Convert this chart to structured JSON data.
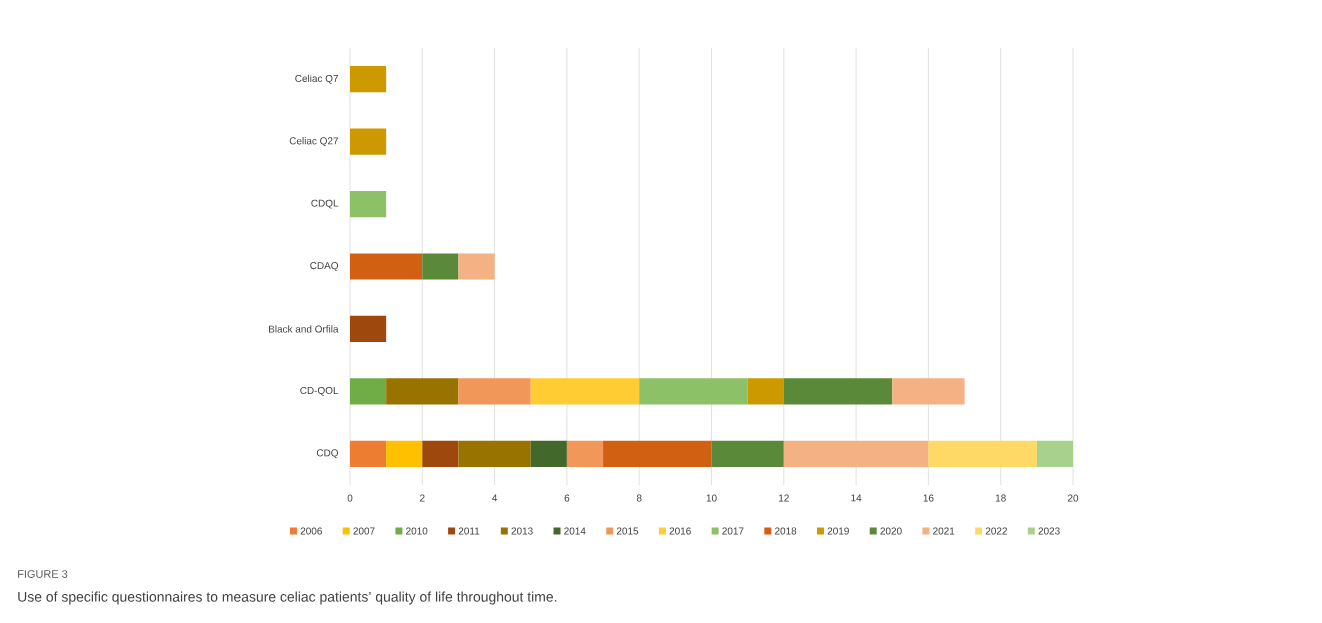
{
  "chart_data": {
    "type": "bar",
    "orientation": "horizontal",
    "stacked": true,
    "categories": [
      "Celiac Q7",
      "Celiac Q27",
      "CDQL",
      "CDAQ",
      "Black and Orfila",
      "CD-QOL",
      "CDQ"
    ],
    "series": [
      {
        "name": "2006",
        "color": "#ed7d31",
        "values": [
          null,
          null,
          null,
          null,
          null,
          null,
          1
        ]
      },
      {
        "name": "2007",
        "color": "#ffc000",
        "values": [
          null,
          null,
          null,
          null,
          null,
          null,
          1
        ]
      },
      {
        "name": "2010",
        "color": "#70ad47",
        "values": [
          null,
          null,
          null,
          null,
          null,
          1,
          null
        ]
      },
      {
        "name": "2011",
        "color": "#9e480e",
        "values": [
          null,
          null,
          null,
          null,
          1,
          null,
          1
        ]
      },
      {
        "name": "2013",
        "color": "#997300",
        "values": [
          null,
          null,
          null,
          null,
          null,
          2,
          2
        ]
      },
      {
        "name": "2014",
        "color": "#43682b",
        "values": [
          null,
          null,
          null,
          null,
          null,
          null,
          1
        ]
      },
      {
        "name": "2015",
        "color": "#f1975a",
        "values": [
          null,
          null,
          null,
          null,
          null,
          2,
          1
        ]
      },
      {
        "name": "2016",
        "color": "#ffcd33",
        "values": [
          null,
          null,
          null,
          null,
          null,
          3,
          null
        ]
      },
      {
        "name": "2017",
        "color": "#8cc168",
        "values": [
          null,
          null,
          1,
          null,
          null,
          3,
          null
        ]
      },
      {
        "name": "2018",
        "color": "#d26012",
        "values": [
          null,
          null,
          null,
          2,
          null,
          null,
          3
        ]
      },
      {
        "name": "2019",
        "color": "#cc9a00",
        "values": [
          1,
          1,
          null,
          null,
          null,
          1,
          null
        ]
      },
      {
        "name": "2020",
        "color": "#5a8a39",
        "values": [
          null,
          null,
          null,
          1,
          null,
          3,
          2
        ]
      },
      {
        "name": "2021",
        "color": "#f4b183",
        "values": [
          null,
          null,
          null,
          1,
          null,
          2,
          4
        ]
      },
      {
        "name": "2022",
        "color": "#ffd966",
        "values": [
          null,
          null,
          null,
          null,
          null,
          null,
          3
        ]
      },
      {
        "name": "2023",
        "color": "#a9d18e",
        "values": [
          null,
          null,
          null,
          null,
          null,
          null,
          1
        ]
      }
    ],
    "xlim": [
      0,
      20
    ],
    "xticks": [
      0,
      2,
      4,
      6,
      8,
      10,
      12,
      14,
      16,
      18,
      20
    ],
    "grid": "x",
    "legend": "bottom",
    "annotations": [
      "FIGURE 3",
      "Use of specific questionnaires to measure celiac patients’ quality of life throughout time."
    ]
  }
}
